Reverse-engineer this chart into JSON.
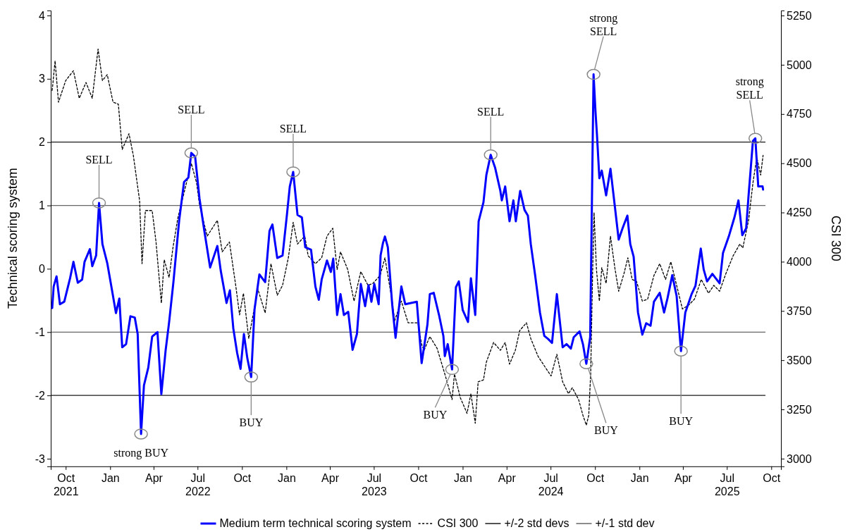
{
  "chart_data": {
    "type": "line",
    "ylabel": "Technical scoring system",
    "y2label": "CSI 300",
    "xlim": [
      "2021-08-31",
      "2025-10-21"
    ],
    "xticks": [
      {
        "value": "2021-10-01",
        "label": "Oct\n2021"
      },
      {
        "value": "2022-01-01",
        "label": "Jan"
      },
      {
        "value": "2022-04-01",
        "label": "Apr"
      },
      {
        "value": "2022-07-01",
        "label": "Jul\n2022"
      },
      {
        "value": "2022-10-01",
        "label": "Oct"
      },
      {
        "value": "2023-01-01",
        "label": "Jan"
      },
      {
        "value": "2023-04-01",
        "label": "Apr"
      },
      {
        "value": "2023-07-01",
        "label": "Jul\n2023"
      },
      {
        "value": "2023-10-01",
        "label": "Oct"
      },
      {
        "value": "2024-01-01",
        "label": "Jan"
      },
      {
        "value": "2024-04-01",
        "label": "Apr"
      },
      {
        "value": "2024-07-01",
        "label": "Jul\n2024"
      },
      {
        "value": "2024-10-01",
        "label": "Oct"
      },
      {
        "value": "2025-01-01",
        "label": "Jan"
      },
      {
        "value": "2025-04-01",
        "label": "Apr"
      },
      {
        "value": "2025-07-01",
        "label": "Jul\n2025"
      },
      {
        "value": "2025-10-01",
        "label": "Oct"
      }
    ],
    "ylim": [
      -3.12,
      4.08
    ],
    "yticks": [
      -3,
      -2,
      -1,
      0,
      1,
      2,
      3,
      4
    ],
    "y2lim": [
      2961,
      5276
    ],
    "y2ticks": [
      3000,
      3250,
      3500,
      3750,
      4000,
      4250,
      4500,
      4750,
      5000,
      5250
    ],
    "grid": false,
    "legend": "bottom",
    "series": [
      {
        "name": "Medium term technical scoring system",
        "color": "#0000ff",
        "line_style": "solid",
        "x": [
          "2021-09-03",
          "2021-09-06",
          "2021-09-12",
          "2021-09-19",
          "2021-09-28",
          "2021-10-10",
          "2021-10-17",
          "2021-10-26",
          "2021-11-04",
          "2021-11-09",
          "2021-11-20",
          "2021-11-25",
          "2021-12-03",
          "2021-12-09",
          "2021-12-16",
          "2021-12-26",
          "2022-01-04",
          "2022-01-13",
          "2022-01-20",
          "2022-01-26",
          "2022-02-03",
          "2022-02-12",
          "2022-02-21",
          "2022-02-27",
          "2022-03-06",
          "2022-03-12",
          "2022-03-21",
          "2022-03-29",
          "2022-04-09",
          "2022-04-17",
          "2022-04-26",
          "2022-05-03",
          "2022-05-12",
          "2022-05-24",
          "2022-06-03",
          "2022-06-12",
          "2022-06-18",
          "2022-06-26",
          "2022-07-05",
          "2022-07-15",
          "2022-07-27",
          "2022-08-11",
          "2022-08-18",
          "2022-08-30",
          "2022-09-06",
          "2022-09-13",
          "2022-09-21",
          "2022-09-28",
          "2022-10-05",
          "2022-10-12",
          "2022-10-20",
          "2022-10-27",
          "2022-11-06",
          "2022-11-18",
          "2022-11-27",
          "2022-12-03",
          "2022-12-13",
          "2022-12-24",
          "2023-01-02",
          "2023-01-08",
          "2023-01-15",
          "2023-01-24",
          "2023-02-02",
          "2023-02-09",
          "2023-02-21",
          "2023-03-02",
          "2023-03-09",
          "2023-03-15",
          "2023-03-26",
          "2023-04-03",
          "2023-04-08",
          "2023-04-16",
          "2023-04-23",
          "2023-04-30",
          "2023-05-09",
          "2023-05-18",
          "2023-05-27",
          "2023-06-04",
          "2023-06-13",
          "2023-06-20",
          "2023-06-26",
          "2023-07-02",
          "2023-07-11",
          "2023-07-15",
          "2023-07-20",
          "2023-07-24",
          "2023-07-30",
          "2023-08-08",
          "2023-08-15",
          "2023-08-27",
          "2023-09-04",
          "2023-09-16",
          "2023-09-28",
          "2023-10-08",
          "2023-10-20",
          "2023-10-25",
          "2023-11-02",
          "2023-11-13",
          "2023-11-22",
          "2023-11-25",
          "2023-12-01",
          "2023-12-10",
          "2023-12-18",
          "2023-12-24",
          "2024-01-01",
          "2024-01-12",
          "2024-01-18",
          "2024-01-27",
          "2024-02-03",
          "2024-02-13",
          "2024-02-19",
          "2024-02-28",
          "2024-03-08",
          "2024-03-19",
          "2024-03-22",
          "2024-03-29",
          "2024-04-07",
          "2024-04-15",
          "2024-04-20",
          "2024-04-29",
          "2024-05-08",
          "2024-05-15",
          "2024-05-21",
          "2024-05-30",
          "2024-06-09",
          "2024-06-18",
          "2024-06-26",
          "2024-07-04",
          "2024-07-14",
          "2024-07-26",
          "2024-08-03",
          "2024-08-12",
          "2024-08-18",
          "2024-08-30",
          "2024-09-06",
          "2024-09-13",
          "2024-09-21",
          "2024-09-28",
          "2024-10-02",
          "2024-10-05",
          "2024-10-10",
          "2024-10-15",
          "2024-10-24",
          "2024-11-02",
          "2024-11-11",
          "2024-11-19",
          "2024-11-27",
          "2024-12-07",
          "2024-12-13",
          "2024-12-20",
          "2024-12-29",
          "2025-01-07",
          "2025-01-15",
          "2025-01-24",
          "2025-01-31",
          "2025-02-12",
          "2025-02-21",
          "2025-02-28",
          "2025-03-10",
          "2025-03-19",
          "2025-03-28",
          "2025-04-06",
          "2025-04-19",
          "2025-04-27",
          "2025-05-08",
          "2025-05-14",
          "2025-05-21",
          "2025-06-01",
          "2025-06-16",
          "2025-06-23",
          "2025-07-05",
          "2025-07-17",
          "2025-07-25",
          "2025-08-02",
          "2025-08-10",
          "2025-08-15",
          "2025-08-24",
          "2025-08-29",
          "2025-09-04",
          "2025-09-13",
          "2025-09-14"
        ],
        "values": [
          -0.62,
          -0.28,
          -0.12,
          -0.56,
          -0.52,
          -0.15,
          0.11,
          -0.22,
          -0.17,
          0.11,
          0.31,
          0.04,
          0.21,
          1.04,
          0.39,
          0.09,
          -0.3,
          -0.7,
          -0.47,
          -1.24,
          -1.19,
          -0.75,
          -0.77,
          -1.03,
          -2.61,
          -1.84,
          -1.56,
          -1.07,
          -1.0,
          -1.98,
          -1.28,
          -0.85,
          -0.21,
          0.77,
          1.37,
          1.44,
          1.83,
          1.77,
          1.11,
          0.6,
          0.02,
          0.36,
          -0.03,
          -0.54,
          -0.34,
          -0.94,
          -1.33,
          -1.58,
          -1.03,
          -1.41,
          -1.71,
          -0.64,
          -0.09,
          -0.21,
          0.6,
          0.7,
          0.17,
          0.21,
          0.85,
          1.3,
          1.53,
          0.85,
          0.81,
          0.34,
          0.3,
          -0.28,
          -0.49,
          -0.17,
          0.13,
          -0.05,
          0.16,
          -0.73,
          -0.4,
          -0.73,
          -0.68,
          -1.28,
          -1.03,
          -0.24,
          -0.59,
          -0.26,
          -0.52,
          -0.24,
          -0.56,
          0.21,
          0.41,
          0.51,
          0.34,
          -0.56,
          -1.09,
          -0.28,
          -0.56,
          -0.54,
          -0.52,
          -1.49,
          -0.88,
          -0.4,
          -0.38,
          -0.73,
          -1.06,
          -1.38,
          -1.19,
          -1.59,
          -0.29,
          -0.2,
          -0.65,
          -0.84,
          -0.15,
          -0.73,
          0.75,
          1.05,
          1.48,
          1.8,
          1.6,
          1.23,
          1.08,
          1.3,
          0.75,
          1.08,
          0.75,
          1.23,
          0.93,
          0.84,
          0.39,
          -0.1,
          -0.69,
          -1.06,
          -1.11,
          -1.17,
          -0.4,
          -1.24,
          -1.19,
          -1.26,
          -1.08,
          -0.99,
          -1.19,
          -1.5,
          -1.08,
          3.07,
          2.48,
          2.12,
          1.43,
          1.55,
          1.16,
          1.58,
          0.99,
          0.46,
          0.64,
          0.84,
          0.39,
          0.19,
          -0.69,
          -1.04,
          -0.86,
          -0.9,
          -0.52,
          -0.38,
          -0.69,
          -0.47,
          -0.1,
          -0.43,
          -1.3,
          -0.69,
          -0.4,
          -0.27,
          0.32,
          -0.01,
          -0.2,
          -0.08,
          -0.23,
          0.25,
          0.51,
          0.82,
          1.08,
          0.53,
          0.64,
          1.16,
          2.02,
          2.06,
          1.3,
          1.3,
          1.25
        ]
      },
      {
        "name": "CSI 300",
        "color": "#000000",
        "line_style": "dashed",
        "axis": "y2",
        "x": [
          "2021-09-03",
          "2021-09-09",
          "2021-09-16",
          "2021-10-01",
          "2021-10-17",
          "2021-10-29",
          "2021-11-12",
          "2021-11-25",
          "2021-12-07",
          "2021-12-16",
          "2021-12-26",
          "2022-01-07",
          "2022-01-18",
          "2022-01-26",
          "2022-02-09",
          "2022-02-18",
          "2022-03-03",
          "2022-03-08",
          "2022-03-15",
          "2022-03-29",
          "2022-04-06",
          "2022-04-17",
          "2022-04-23",
          "2022-05-03",
          "2022-05-11",
          "2022-05-21",
          "2022-06-05",
          "2022-06-18",
          "2022-06-29",
          "2022-07-05",
          "2022-07-21",
          "2022-08-11",
          "2022-08-21",
          "2022-09-05",
          "2022-09-15",
          "2022-09-18",
          "2022-09-26",
          "2022-10-04",
          "2022-10-15",
          "2022-10-24",
          "2022-11-03",
          "2022-11-18",
          "2022-11-30",
          "2022-12-13",
          "2022-12-24",
          "2023-01-05",
          "2023-01-15",
          "2023-01-24",
          "2023-02-08",
          "2023-02-15",
          "2023-03-02",
          "2023-03-15",
          "2023-03-26",
          "2023-04-07",
          "2023-04-16",
          "2023-04-23",
          "2023-05-08",
          "2023-05-21",
          "2023-06-04",
          "2023-06-19",
          "2023-06-29",
          "2023-07-14",
          "2023-07-24",
          "2023-08-08",
          "2023-08-13",
          "2023-08-27",
          "2023-09-10",
          "2023-09-28",
          "2023-10-01",
          "2023-10-08",
          "2023-10-13",
          "2023-10-25",
          "2023-11-09",
          "2023-11-25",
          "2023-12-10",
          "2023-12-15",
          "2023-12-27",
          "2024-01-10",
          "2024-01-18",
          "2024-01-27",
          "2024-02-02",
          "2024-02-13",
          "2024-02-19",
          "2024-03-05",
          "2024-03-19",
          "2024-03-29",
          "2024-04-07",
          "2024-04-19",
          "2024-04-28",
          "2024-05-12",
          "2024-05-21",
          "2024-06-05",
          "2024-06-21",
          "2024-07-02",
          "2024-07-14",
          "2024-07-26",
          "2024-08-07",
          "2024-08-15",
          "2024-08-28",
          "2024-09-06",
          "2024-09-13",
          "2024-09-18",
          "2024-09-22",
          "2024-09-26",
          "2024-09-29",
          "2024-10-04",
          "2024-10-10",
          "2024-10-15",
          "2024-10-24",
          "2024-11-02",
          "2024-11-11",
          "2024-11-19",
          "2024-11-30",
          "2024-12-08",
          "2024-12-17",
          "2024-12-26",
          "2025-01-07",
          "2025-01-18",
          "2025-01-31",
          "2025-02-12",
          "2025-02-24",
          "2025-03-07",
          "2025-03-19",
          "2025-03-31",
          "2025-04-13",
          "2025-04-25",
          "2025-05-09",
          "2025-05-24",
          "2025-06-04",
          "2025-06-16",
          "2025-06-29",
          "2025-07-14",
          "2025-07-28",
          "2025-08-03",
          "2025-08-15",
          "2025-08-24",
          "2025-09-01",
          "2025-09-09",
          "2025-09-14"
        ],
        "values": [
          4870,
          5020,
          4810,
          4920,
          4970,
          4830,
          4910,
          4830,
          5080,
          4920,
          4950,
          4810,
          4800,
          4570,
          4650,
          4540,
          4310,
          3990,
          4260,
          4260,
          4100,
          3790,
          4010,
          3920,
          4070,
          4220,
          4370,
          4500,
          4400,
          4290,
          4130,
          4210,
          4050,
          4100,
          3930,
          3880,
          3730,
          3840,
          3610,
          3730,
          3860,
          3740,
          3990,
          3830,
          3880,
          4020,
          4200,
          4090,
          4130,
          4030,
          3990,
          4020,
          4130,
          4170,
          3960,
          4050,
          3960,
          3800,
          3950,
          3880,
          3890,
          3930,
          4020,
          3800,
          3700,
          3800,
          3690,
          3690,
          3680,
          3580,
          3550,
          3620,
          3560,
          3430,
          3300,
          3430,
          3310,
          3230,
          3330,
          3180,
          3390,
          3400,
          3490,
          3590,
          3550,
          3590,
          3480,
          3550,
          3650,
          3690,
          3610,
          3520,
          3460,
          3420,
          3530,
          3390,
          3330,
          3360,
          3300,
          3220,
          3170,
          3220,
          3430,
          3940,
          4250,
          3960,
          3800,
          3970,
          3890,
          4130,
          3970,
          3850,
          3940,
          4020,
          3910,
          3900,
          3800,
          3810,
          3930,
          3990,
          3910,
          4000,
          3880,
          3760,
          3780,
          3810,
          3910,
          3840,
          3880,
          3850,
          3940,
          4030,
          4090,
          4070,
          4210,
          4400,
          4530,
          4440,
          4540
        ]
      }
    ],
    "ref_lines": [
      {
        "axis": "y",
        "value": 2,
        "label": "+/-2 std devs",
        "color": "#1a1a1a"
      },
      {
        "axis": "y",
        "value": -2,
        "label": null,
        "color": "#1a1a1a"
      },
      {
        "axis": "y",
        "value": 1,
        "label": "+/-1 std dev",
        "color": "#666666"
      },
      {
        "axis": "y",
        "value": -1,
        "label": null,
        "color": "#666666"
      }
    ],
    "annotations": [
      {
        "text": "SELL",
        "x": "2021-12-09",
        "y": 1.04
      },
      {
        "text": "strong BUY",
        "x": "2022-03-06",
        "y": -2.61
      },
      {
        "text": "SELL",
        "x": "2022-06-18",
        "y": 1.83
      },
      {
        "text": "BUY",
        "x": "2022-10-20",
        "y": -1.71
      },
      {
        "text": "SELL",
        "x": "2023-01-15",
        "y": 1.53
      },
      {
        "text": "BUY",
        "x": "2023-12-10",
        "y": -1.59
      },
      {
        "text": "SELL",
        "x": "2024-02-28",
        "y": 1.8
      },
      {
        "text": "BUY",
        "x": "2024-09-13",
        "y": -1.5
      },
      {
        "text": "strong\nSELL",
        "x": "2024-09-28",
        "y": 3.07
      },
      {
        "text": "BUY",
        "x": "2025-03-28",
        "y": -1.3
      },
      {
        "text": "strong\nSELL",
        "x": "2025-08-29",
        "y": 2.06
      }
    ]
  }
}
